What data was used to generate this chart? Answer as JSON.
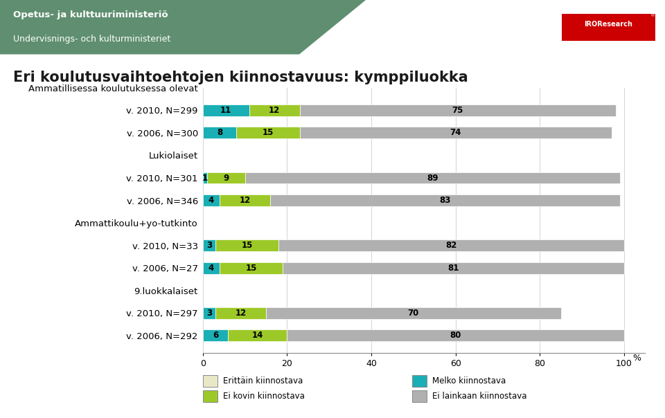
{
  "title": "Eri koulutusvaihtoehtojen kiinnostavuus: kymppiluokka",
  "header_line1": "Opetus- ja kulttuuriministeriö",
  "header_line2": "Undervisnings- och kulturministeriet",
  "categories": [
    "v. 2006, N=292",
    "v. 2010, N=297",
    "9.luokkalaiset",
    "v. 2006, N=27",
    "v. 2010, N=33",
    "Ammattikoulu+yo-tutkinto",
    "v. 2006, N=346",
    "v. 2010, N=301",
    "Lukiolaiset",
    "v. 2006, N=300",
    "v. 2010, N=299",
    "Ammatillisessa koulutuksessa olevat"
  ],
  "series_order": [
    "Melko kiinnostava",
    "Erittäin kiinnostava",
    "Ei kovin kiinnostava",
    "Ei lainkaan kiinnostava"
  ],
  "series": {
    "Melko kiinnostava": [
      6,
      3,
      0,
      4,
      3,
      0,
      4,
      1,
      0,
      8,
      11,
      0
    ],
    "Erittäin kiinnostava": [
      0,
      0,
      0,
      0,
      0,
      0,
      0,
      0,
      0,
      0,
      0,
      0
    ],
    "Ei kovin kiinnostava": [
      14,
      12,
      0,
      15,
      15,
      0,
      12,
      9,
      0,
      15,
      12,
      0
    ],
    "Ei lainkaan kiinnostava": [
      80,
      70,
      0,
      81,
      82,
      0,
      83,
      89,
      0,
      74,
      75,
      0
    ]
  },
  "bar_labels": {
    "Melko kiinnostava": [
      6,
      3,
      0,
      4,
      3,
      0,
      4,
      1,
      0,
      8,
      11,
      0
    ],
    "Erittäin kiinnostava": [
      0,
      0,
      0,
      0,
      0,
      0,
      0,
      0,
      0,
      0,
      0,
      0
    ],
    "Ei kovin kiinnostava": [
      14,
      12,
      0,
      15,
      15,
      0,
      12,
      9,
      0,
      15,
      12,
      0
    ],
    "Ei lainkaan kiinnostava": [
      80,
      70,
      0,
      81,
      82,
      0,
      83,
      89,
      0,
      74,
      75,
      0
    ]
  },
  "colors": {
    "Melko kiinnostava": "#1aafb4",
    "Erittäin kiinnostava": "#e8e8c8",
    "Ei kovin kiinnostava": "#9dc928",
    "Ei lainkaan kiinnostava": "#b0b0b0"
  },
  "xlim": [
    0,
    105
  ],
  "xticks": [
    0,
    20,
    40,
    60,
    80,
    100
  ],
  "background_color": "#ffffff",
  "header_bg": "#5f8f70",
  "title_fontsize": 15,
  "bar_height": 0.52,
  "legend_items_left": [
    "Erittäin kiinnostava",
    "Ei kovin kiinnostava"
  ],
  "legend_items_right": [
    "Melko kiinnostava",
    "Ei lainkaan kiinnostava"
  ]
}
